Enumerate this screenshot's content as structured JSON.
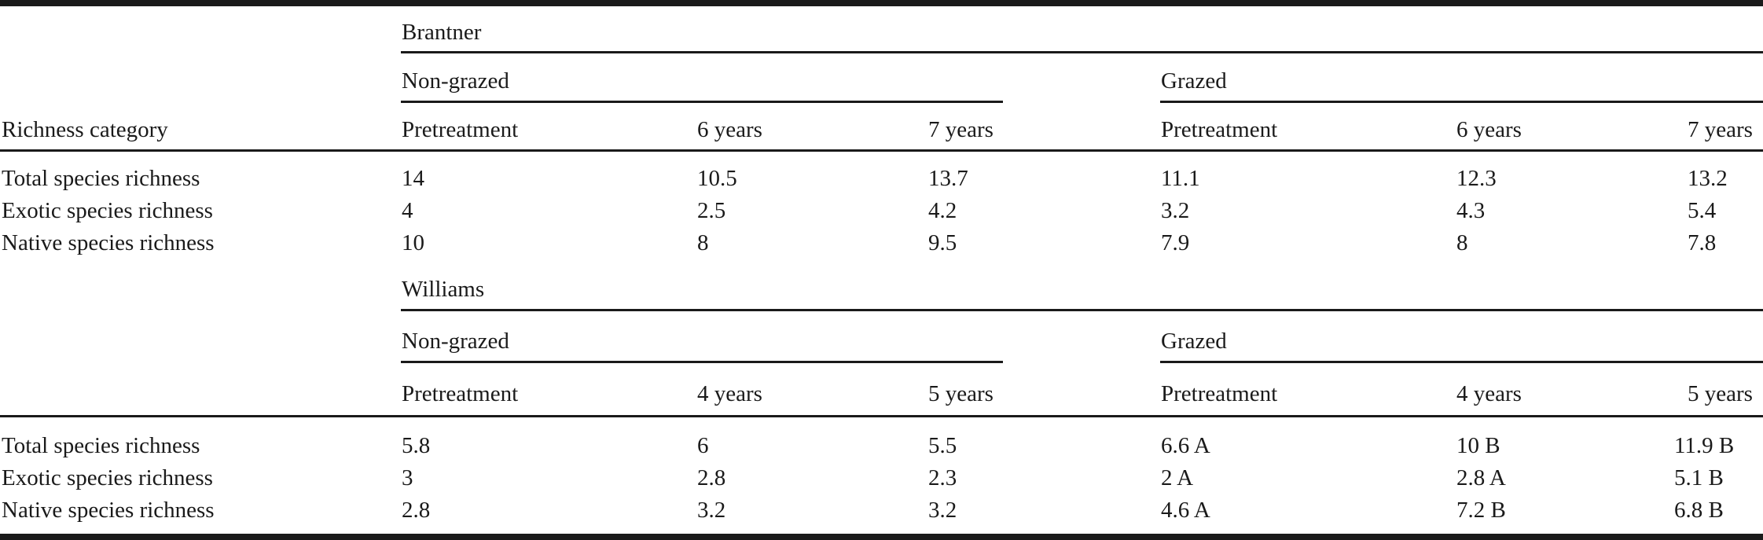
{
  "header": {
    "richness_category": "Richness category"
  },
  "sites": [
    {
      "name": "Brantner",
      "treatments": [
        {
          "name": "Non-grazed",
          "periods": [
            "Pretreatment",
            "6 years",
            "7 years"
          ]
        },
        {
          "name": "Grazed",
          "periods": [
            "Pretreatment",
            "6 years",
            "7 years"
          ]
        }
      ],
      "rows": [
        {
          "label": "Total species richness",
          "values": [
            "14",
            "10.5",
            "13.7",
            "11.1",
            "12.3",
            "13.2"
          ]
        },
        {
          "label": "Exotic species richness",
          "values": [
            "4",
            "2.5",
            "4.2",
            "3.2",
            "4.3",
            "5.4"
          ]
        },
        {
          "label": "Native species richness",
          "values": [
            "10",
            "8",
            "9.5",
            "7.9",
            "8",
            "7.8"
          ]
        }
      ]
    },
    {
      "name": "Williams",
      "treatments": [
        {
          "name": "Non-grazed",
          "periods": [
            "Pretreatment",
            "4 years",
            "5 years"
          ]
        },
        {
          "name": "Grazed",
          "periods": [
            "Pretreatment",
            "4 years",
            "5 years"
          ]
        }
      ],
      "rows": [
        {
          "label": "Total species richness",
          "values": [
            "5.8",
            "6",
            "5.5",
            "6.6 A",
            "10 B",
            "11.9 B"
          ]
        },
        {
          "label": "Exotic species richness",
          "values": [
            "3",
            "2.8",
            "2.3",
            "2 A",
            "2.8 A",
            "5.1 B"
          ]
        },
        {
          "label": "Native species richness",
          "values": [
            "2.8",
            "3.2",
            "3.2",
            "4.6 A",
            "7.2 B",
            "6.8 B"
          ]
        }
      ]
    }
  ]
}
